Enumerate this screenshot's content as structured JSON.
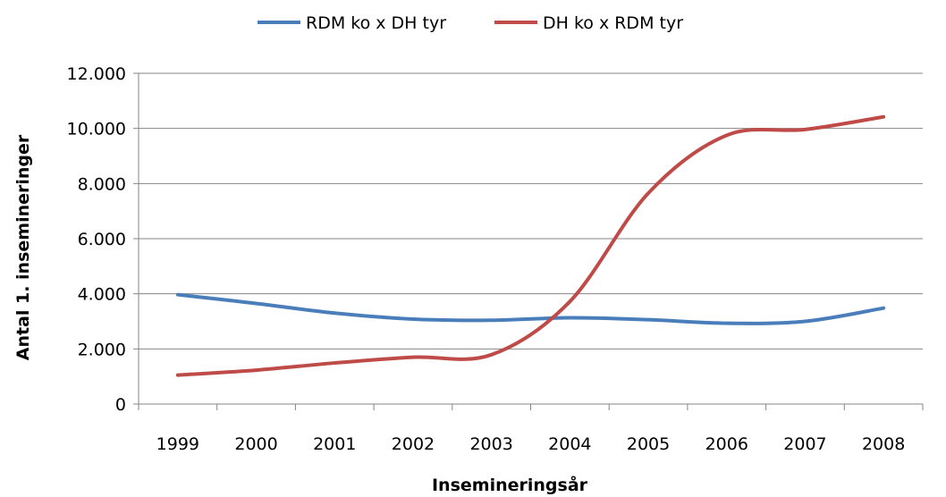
{
  "chart_data": {
    "type": "line",
    "title": "",
    "xlabel": "Insemineringsår",
    "ylabel": "Antal 1. insemineringer",
    "categories": [
      "1999",
      "2000",
      "2001",
      "2002",
      "2003",
      "2004",
      "2005",
      "2006",
      "2007",
      "2008"
    ],
    "series": [
      {
        "name": "RDM ko x DH tyr",
        "color": "#4a7ebb",
        "values": [
          3970,
          3650,
          3300,
          3080,
          3040,
          3130,
          3060,
          2930,
          3000,
          3480
        ]
      },
      {
        "name": "DH ko x RDM tyr",
        "color": "#be4b48",
        "values": [
          1050,
          1230,
          1490,
          1700,
          1790,
          3720,
          7650,
          9750,
          9960,
          10420
        ]
      }
    ],
    "ylim": [
      0,
      12000
    ],
    "yticks": [
      0,
      2000,
      4000,
      6000,
      8000,
      10000,
      12000
    ],
    "ytick_labels": [
      "0",
      "2.000",
      "4.000",
      "6.000",
      "8.000",
      "10.000",
      "12.000"
    ],
    "grid": true,
    "legend": "top"
  }
}
